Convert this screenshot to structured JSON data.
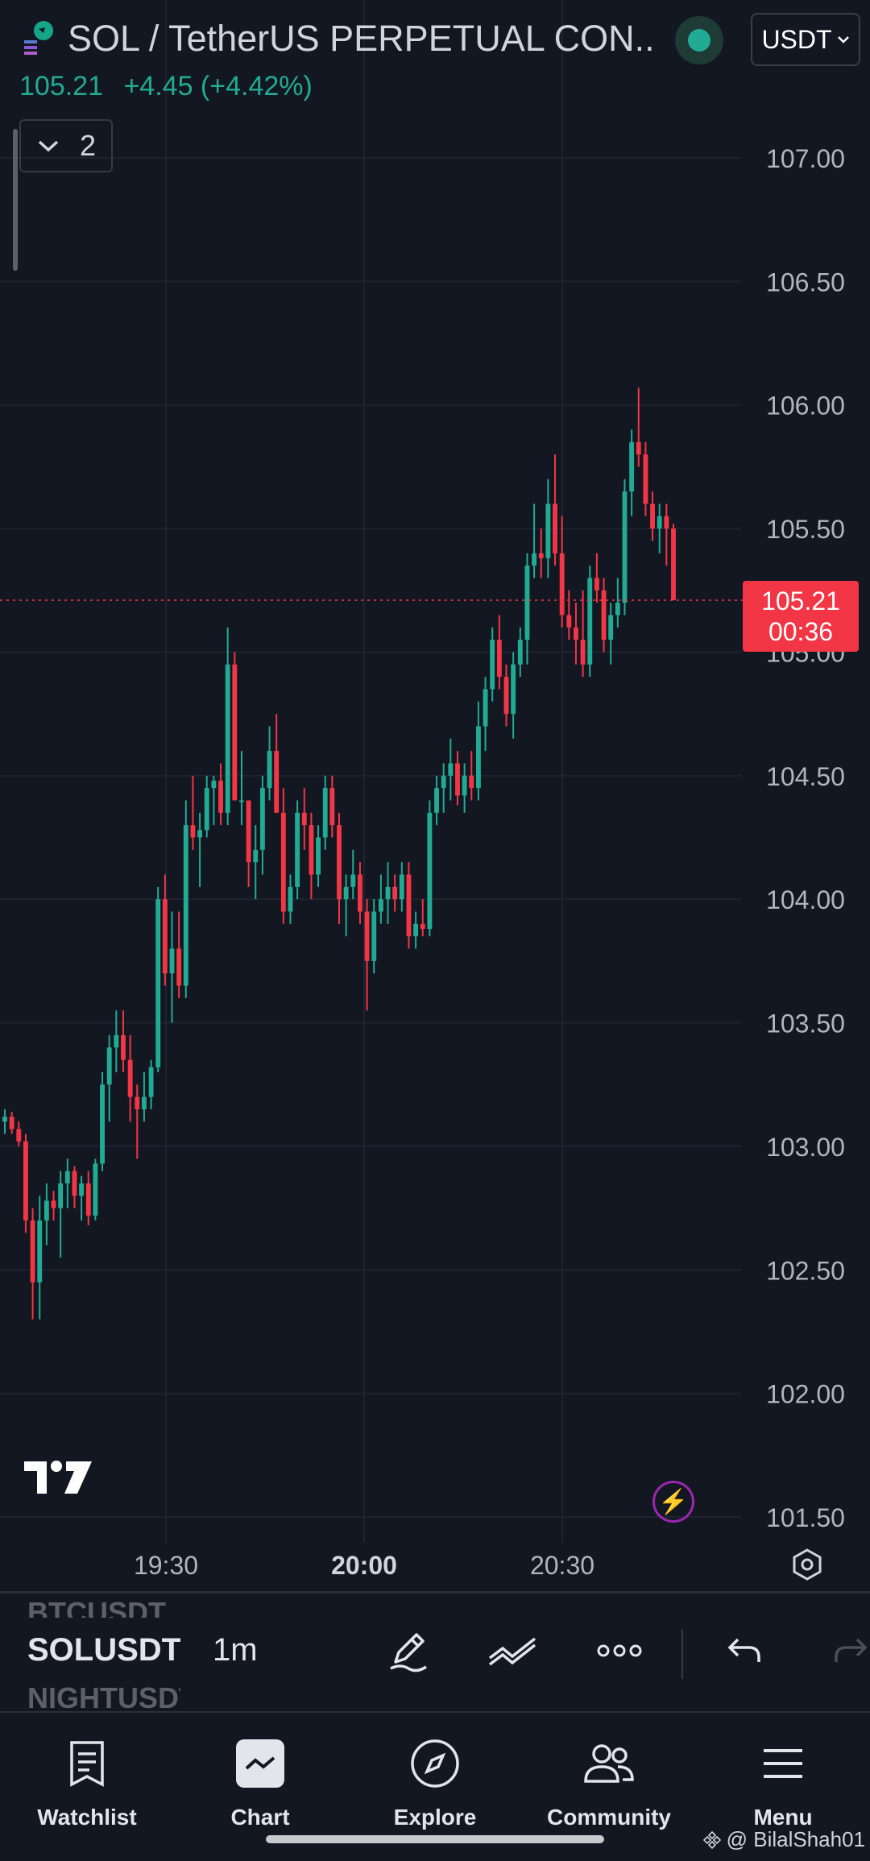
{
  "header": {
    "title": "SOL / TetherUS PERPETUAL CON...",
    "currency": "USDT",
    "price": "105.21",
    "change": "+4.45 (+4.42%)",
    "layer_count": "2",
    "live_color": "#22ab94"
  },
  "price_tag": {
    "price": "105.21",
    "countdown": "00:36",
    "color": "#f23645"
  },
  "colors": {
    "up": "#22ab94",
    "down": "#f23645",
    "background": "#131722"
  },
  "chart_data": {
    "type": "candlestick",
    "title": "",
    "xlabel": "",
    "ylabel": "",
    "ylim": [
      101.5,
      107.2
    ],
    "y_ticks": [
      "107.00",
      "106.50",
      "106.00",
      "105.50",
      "105.00",
      "104.50",
      "104.00",
      "103.50",
      "103.00",
      "102.50",
      "102.00",
      "101.50"
    ],
    "x_ticks": [
      "19:30",
      "20:00",
      "20:30"
    ],
    "x_ticks_bold": [
      "20:00"
    ],
    "current_price": 105.21,
    "grid": true,
    "candles_ohlc": [
      [
        103.1,
        103.15,
        103.05,
        103.12
      ],
      [
        103.12,
        103.14,
        103.05,
        103.07
      ],
      [
        103.07,
        103.1,
        103.0,
        103.02
      ],
      [
        103.02,
        103.05,
        102.65,
        102.7
      ],
      [
        102.7,
        102.75,
        102.3,
        102.45
      ],
      [
        102.45,
        102.8,
        102.3,
        102.7
      ],
      [
        102.7,
        102.85,
        102.6,
        102.78
      ],
      [
        102.78,
        102.82,
        102.7,
        102.75
      ],
      [
        102.75,
        102.9,
        102.55,
        102.85
      ],
      [
        102.85,
        102.95,
        102.75,
        102.9
      ],
      [
        102.9,
        102.92,
        102.75,
        102.8
      ],
      [
        102.8,
        102.88,
        102.7,
        102.85
      ],
      [
        102.85,
        102.9,
        102.68,
        102.72
      ],
      [
        102.72,
        102.95,
        102.7,
        102.93
      ],
      [
        102.93,
        103.3,
        102.9,
        103.25
      ],
      [
        103.25,
        103.45,
        103.1,
        103.4
      ],
      [
        103.4,
        103.55,
        103.3,
        103.45
      ],
      [
        103.45,
        103.55,
        103.3,
        103.35
      ],
      [
        103.35,
        103.45,
        103.1,
        103.2
      ],
      [
        103.2,
        103.25,
        102.95,
        103.15
      ],
      [
        103.15,
        103.3,
        103.1,
        103.2
      ],
      [
        103.2,
        103.35,
        103.15,
        103.32
      ],
      [
        103.32,
        104.05,
        103.3,
        104.0
      ],
      [
        104.0,
        104.1,
        103.65,
        103.7
      ],
      [
        103.7,
        103.95,
        103.5,
        103.8
      ],
      [
        103.8,
        103.95,
        103.6,
        103.65
      ],
      [
        103.65,
        104.4,
        103.6,
        104.3
      ],
      [
        104.3,
        104.5,
        104.2,
        104.25
      ],
      [
        104.25,
        104.35,
        104.05,
        104.28
      ],
      [
        104.28,
        104.5,
        104.25,
        104.45
      ],
      [
        104.45,
        104.5,
        104.3,
        104.48
      ],
      [
        104.48,
        104.55,
        104.3,
        104.35
      ],
      [
        104.35,
        105.1,
        104.3,
        104.95
      ],
      [
        104.95,
        105.0,
        104.5,
        104.4
      ],
      [
        104.4,
        104.6,
        104.3,
        104.4
      ],
      [
        104.4,
        104.4,
        104.05,
        104.15
      ],
      [
        104.15,
        104.3,
        104.0,
        104.2
      ],
      [
        104.2,
        104.5,
        104.1,
        104.45
      ],
      [
        104.45,
        104.7,
        104.4,
        104.6
      ],
      [
        104.6,
        104.75,
        104.35,
        104.35
      ],
      [
        104.35,
        104.45,
        103.9,
        103.95
      ],
      [
        103.95,
        104.1,
        103.9,
        104.05
      ],
      [
        104.05,
        104.4,
        104.0,
        104.35
      ],
      [
        104.35,
        104.45,
        104.2,
        104.3
      ],
      [
        104.3,
        104.35,
        104.0,
        104.1
      ],
      [
        104.1,
        104.3,
        104.05,
        104.25
      ],
      [
        104.25,
        104.5,
        104.2,
        104.45
      ],
      [
        104.45,
        104.5,
        104.25,
        104.3
      ],
      [
        104.3,
        104.35,
        103.9,
        104.0
      ],
      [
        104.0,
        104.1,
        103.85,
        104.05
      ],
      [
        104.05,
        104.2,
        104.0,
        104.1
      ],
      [
        104.1,
        104.15,
        103.9,
        103.95
      ],
      [
        103.95,
        104.0,
        103.55,
        103.75
      ],
      [
        103.75,
        104.0,
        103.7,
        103.95
      ],
      [
        103.95,
        104.1,
        103.9,
        104.0
      ],
      [
        104.0,
        104.15,
        103.9,
        104.05
      ],
      [
        104.05,
        104.1,
        103.95,
        104.0
      ],
      [
        104.0,
        104.15,
        103.95,
        104.1
      ],
      [
        104.1,
        104.15,
        103.8,
        103.85
      ],
      [
        103.85,
        103.95,
        103.8,
        103.9
      ],
      [
        103.9,
        104.0,
        103.85,
        103.88
      ],
      [
        103.88,
        104.4,
        103.85,
        104.35
      ],
      [
        104.35,
        104.5,
        104.3,
        104.45
      ],
      [
        104.45,
        104.55,
        104.35,
        104.5
      ],
      [
        104.5,
        104.65,
        104.4,
        104.55
      ],
      [
        104.55,
        104.6,
        104.38,
        104.42
      ],
      [
        104.42,
        104.55,
        104.35,
        104.5
      ],
      [
        104.5,
        104.6,
        104.4,
        104.45
      ],
      [
        104.45,
        104.8,
        104.4,
        104.7
      ],
      [
        104.7,
        104.9,
        104.6,
        104.85
      ],
      [
        104.85,
        105.1,
        104.8,
        105.05
      ],
      [
        105.05,
        105.15,
        104.85,
        104.9
      ],
      [
        104.9,
        104.95,
        104.7,
        104.75
      ],
      [
        104.75,
        105.0,
        104.65,
        104.95
      ],
      [
        104.95,
        105.1,
        104.9,
        105.05
      ],
      [
        105.05,
        105.4,
        104.95,
        105.35
      ],
      [
        105.35,
        105.6,
        105.3,
        105.4
      ],
      [
        105.4,
        105.5,
        105.3,
        105.38
      ],
      [
        105.38,
        105.7,
        105.3,
        105.6
      ],
      [
        105.6,
        105.8,
        105.35,
        105.4
      ],
      [
        105.4,
        105.55,
        105.1,
        105.15
      ],
      [
        105.15,
        105.25,
        105.05,
        105.1
      ],
      [
        105.1,
        105.2,
        104.95,
        105.05
      ],
      [
        105.05,
        105.25,
        104.9,
        104.95
      ],
      [
        104.95,
        105.35,
        104.9,
        105.3
      ],
      [
        105.3,
        105.4,
        105.2,
        105.25
      ],
      [
        105.25,
        105.3,
        105.0,
        105.05
      ],
      [
        105.05,
        105.2,
        104.95,
        105.15
      ],
      [
        105.15,
        105.3,
        105.1,
        105.2
      ],
      [
        105.2,
        105.7,
        105.15,
        105.65
      ],
      [
        105.65,
        105.9,
        105.55,
        105.85
      ],
      [
        105.85,
        106.07,
        105.75,
        105.8
      ],
      [
        105.8,
        105.85,
        105.55,
        105.6
      ],
      [
        105.6,
        105.65,
        105.45,
        105.5
      ],
      [
        105.5,
        105.6,
        105.4,
        105.55
      ],
      [
        105.55,
        105.6,
        105.35,
        105.5
      ],
      [
        105.5,
        105.52,
        105.21,
        105.21
      ]
    ]
  },
  "toolbar": {
    "symbol_prev": "BTCUSDT",
    "symbol": "SOLUSDT",
    "symbol_next": "NIGHTUSDT",
    "interval": "1m"
  },
  "nav": {
    "watchlist": "Watchlist",
    "chart": "Chart",
    "explore": "Explore",
    "community": "Community",
    "menu": "Menu"
  },
  "watermark": "@ BilalShah01"
}
